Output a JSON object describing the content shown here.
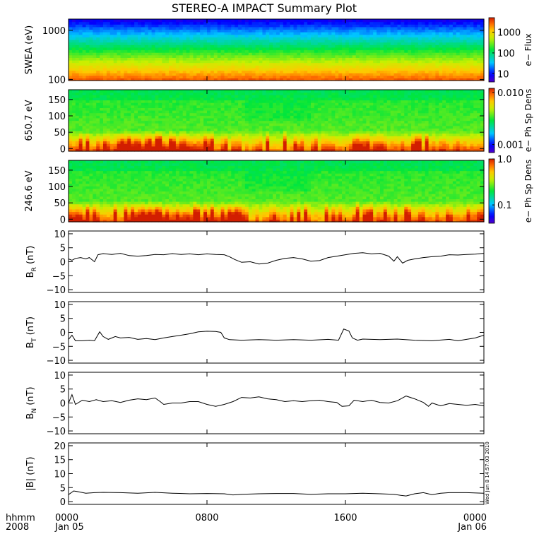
{
  "chart_data": {
    "type": "line",
    "title": "STEREO-A IMPACT Summary Plot",
    "time_axis": {
      "start": "2008-01-05T00:00",
      "end": "2008-01-06T00:00",
      "corner_labels": [
        "hhmm",
        "2008"
      ],
      "ticks": [
        {
          "hour": 0,
          "label": "0000",
          "sublabel": "Jan 05"
        },
        {
          "hour": 8,
          "label": "0800",
          "sublabel": ""
        },
        {
          "hour": 16,
          "label": "1600",
          "sublabel": ""
        },
        {
          "hour": 24,
          "label": "0000",
          "sublabel": "Jan 06"
        }
      ]
    },
    "spectrograms": [
      {
        "ylabel": "SWEA (eV)",
        "yscale": "log",
        "ylim": [
          95,
          1700
        ],
        "yticks": [
          100,
          1000
        ],
        "ytick_labels": [
          "100",
          "1000"
        ],
        "colorbar": {
          "label": "e− Flux",
          "scale": "log",
          "range": [
            4,
            5000
          ],
          "ticks": [
            10,
            100,
            1000
          ],
          "tick_labels": [
            "10",
            "100",
            "1000"
          ]
        }
      },
      {
        "ylabel": "650.7 eV",
        "yscale": "linear",
        "ylim": [
          -8,
          180
        ],
        "yticks": [
          0,
          50,
          100,
          150
        ],
        "ytick_labels": [
          "0",
          "50",
          "100",
          "150"
        ],
        "colorbar": {
          "label": "e− Ph Sp Dens",
          "scale": "log",
          "range": [
            0.0007,
            0.012
          ],
          "ticks": [
            0.001,
            0.01
          ],
          "tick_labels": [
            "0.001",
            "0.010"
          ]
        }
      },
      {
        "ylabel": "246.6 eV",
        "yscale": "linear",
        "ylim": [
          -8,
          180
        ],
        "yticks": [
          0,
          50,
          100,
          150
        ],
        "ytick_labels": [
          "0",
          "50",
          "100",
          "150"
        ],
        "colorbar": {
          "label": "e− Ph Sp Dens",
          "scale": "log",
          "range": [
            0.04,
            1.0
          ],
          "ticks": [
            0.1,
            1.0
          ],
          "tick_labels": [
            "0.1",
            "1.0"
          ]
        }
      }
    ],
    "line_panels": [
      {
        "ylabel_main": "B",
        "ylabel_sub": "R",
        "ylabel_unit": " (nT)",
        "ylim": [
          -11,
          11
        ],
        "yticks": [
          -10,
          -5,
          0,
          5,
          10
        ],
        "ytick_labels": [
          "−10",
          "−5",
          "0",
          "5",
          "10"
        ],
        "series": [
          {
            "hour": 0.0,
            "value": 1.0
          },
          {
            "hour": 0.2,
            "value": 0.5
          },
          {
            "hour": 0.4,
            "value": 1.2
          },
          {
            "hour": 0.7,
            "value": 1.5
          },
          {
            "hour": 1.0,
            "value": 1.0
          },
          {
            "hour": 1.2,
            "value": 1.5
          },
          {
            "hour": 1.5,
            "value": 0.0
          },
          {
            "hour": 1.7,
            "value": 2.5
          },
          {
            "hour": 2.0,
            "value": 2.9
          },
          {
            "hour": 2.5,
            "value": 2.6
          },
          {
            "hour": 3.0,
            "value": 3.0
          },
          {
            "hour": 3.5,
            "value": 2.2
          },
          {
            "hour": 4.0,
            "value": 2.0
          },
          {
            "hour": 4.5,
            "value": 2.2
          },
          {
            "hour": 5.0,
            "value": 2.6
          },
          {
            "hour": 5.5,
            "value": 2.5
          },
          {
            "hour": 6.0,
            "value": 2.9
          },
          {
            "hour": 6.5,
            "value": 2.6
          },
          {
            "hour": 7.0,
            "value": 2.8
          },
          {
            "hour": 7.5,
            "value": 2.5
          },
          {
            "hour": 8.0,
            "value": 2.8
          },
          {
            "hour": 8.5,
            "value": 2.6
          },
          {
            "hour": 9.0,
            "value": 2.5
          },
          {
            "hour": 9.3,
            "value": 1.8
          },
          {
            "hour": 9.6,
            "value": 0.8
          },
          {
            "hour": 10.0,
            "value": -0.2
          },
          {
            "hour": 10.5,
            "value": 0.0
          },
          {
            "hour": 11.0,
            "value": -0.8
          },
          {
            "hour": 11.5,
            "value": -0.5
          },
          {
            "hour": 12.0,
            "value": 0.5
          },
          {
            "hour": 12.5,
            "value": 1.2
          },
          {
            "hour": 13.0,
            "value": 1.5
          },
          {
            "hour": 13.5,
            "value": 1.0
          },
          {
            "hour": 14.0,
            "value": 0.2
          },
          {
            "hour": 14.5,
            "value": 0.4
          },
          {
            "hour": 15.0,
            "value": 1.5
          },
          {
            "hour": 15.5,
            "value": 2.0
          },
          {
            "hour": 16.0,
            "value": 2.5
          },
          {
            "hour": 16.5,
            "value": 3.0
          },
          {
            "hour": 17.0,
            "value": 3.2
          },
          {
            "hour": 17.5,
            "value": 2.8
          },
          {
            "hour": 18.0,
            "value": 3.0
          },
          {
            "hour": 18.5,
            "value": 2.0
          },
          {
            "hour": 18.8,
            "value": 0.2
          },
          {
            "hour": 19.0,
            "value": 1.8
          },
          {
            "hour": 19.3,
            "value": -0.5
          },
          {
            "hour": 19.6,
            "value": 0.5
          },
          {
            "hour": 20.0,
            "value": 1.0
          },
          {
            "hour": 20.5,
            "value": 1.5
          },
          {
            "hour": 21.0,
            "value": 1.8
          },
          {
            "hour": 21.5,
            "value": 2.0
          },
          {
            "hour": 22.0,
            "value": 2.5
          },
          {
            "hour": 22.5,
            "value": 2.4
          },
          {
            "hour": 23.0,
            "value": 2.6
          },
          {
            "hour": 23.5,
            "value": 2.7
          },
          {
            "hour": 24.0,
            "value": 3.0
          }
        ]
      },
      {
        "ylabel_main": "B",
        "ylabel_sub": "T",
        "ylabel_unit": " (nT)",
        "ylim": [
          -11,
          11
        ],
        "yticks": [
          -10,
          -5,
          0,
          5,
          10
        ],
        "ytick_labels": [
          "−10",
          "−5",
          "0",
          "5",
          "10"
        ],
        "series": [
          {
            "hour": 0.0,
            "value": -2.5
          },
          {
            "hour": 0.2,
            "value": -1.0
          },
          {
            "hour": 0.4,
            "value": -3.0
          },
          {
            "hour": 0.8,
            "value": -3.0
          },
          {
            "hour": 1.2,
            "value": -2.8
          },
          {
            "hour": 1.5,
            "value": -3.0
          },
          {
            "hour": 1.8,
            "value": 0.2
          },
          {
            "hour": 2.0,
            "value": -1.5
          },
          {
            "hour": 2.3,
            "value": -2.5
          },
          {
            "hour": 2.7,
            "value": -1.5
          },
          {
            "hour": 3.0,
            "value": -2.0
          },
          {
            "hour": 3.5,
            "value": -1.8
          },
          {
            "hour": 4.0,
            "value": -2.5
          },
          {
            "hour": 4.5,
            "value": -2.2
          },
          {
            "hour": 5.0,
            "value": -2.6
          },
          {
            "hour": 5.5,
            "value": -2.0
          },
          {
            "hour": 6.0,
            "value": -1.5
          },
          {
            "hour": 6.5,
            "value": -1.0
          },
          {
            "hour": 7.0,
            "value": -0.5
          },
          {
            "hour": 7.5,
            "value": 0.2
          },
          {
            "hour": 8.0,
            "value": 0.4
          },
          {
            "hour": 8.5,
            "value": 0.3
          },
          {
            "hour": 8.8,
            "value": 0.0
          },
          {
            "hour": 9.0,
            "value": -2.0
          },
          {
            "hour": 9.3,
            "value": -2.6
          },
          {
            "hour": 10.0,
            "value": -2.8
          },
          {
            "hour": 11.0,
            "value": -2.6
          },
          {
            "hour": 12.0,
            "value": -2.8
          },
          {
            "hour": 13.0,
            "value": -2.6
          },
          {
            "hour": 14.0,
            "value": -2.8
          },
          {
            "hour": 15.0,
            "value": -2.5
          },
          {
            "hour": 15.6,
            "value": -2.8
          },
          {
            "hour": 15.9,
            "value": 1.2
          },
          {
            "hour": 16.2,
            "value": 0.5
          },
          {
            "hour": 16.4,
            "value": -2.0
          },
          {
            "hour": 16.7,
            "value": -2.8
          },
          {
            "hour": 17.0,
            "value": -2.4
          },
          {
            "hour": 18.0,
            "value": -2.6
          },
          {
            "hour": 19.0,
            "value": -2.4
          },
          {
            "hour": 20.0,
            "value": -2.8
          },
          {
            "hour": 21.0,
            "value": -3.0
          },
          {
            "hour": 22.0,
            "value": -2.5
          },
          {
            "hour": 22.5,
            "value": -3.0
          },
          {
            "hour": 23.0,
            "value": -2.5
          },
          {
            "hour": 23.5,
            "value": -2.0
          },
          {
            "hour": 24.0,
            "value": -1.0
          }
        ]
      },
      {
        "ylabel_main": "B",
        "ylabel_sub": "N",
        "ylabel_unit": " (nT)",
        "ylim": [
          -11,
          11
        ],
        "yticks": [
          -10,
          -5,
          0,
          5,
          10
        ],
        "ytick_labels": [
          "−10",
          "−5",
          "0",
          "5",
          "10"
        ],
        "series": [
          {
            "hour": 0.0,
            "value": 0.0
          },
          {
            "hour": 0.2,
            "value": 3.0
          },
          {
            "hour": 0.4,
            "value": -0.5
          },
          {
            "hour": 0.8,
            "value": 1.0
          },
          {
            "hour": 1.2,
            "value": 0.5
          },
          {
            "hour": 1.6,
            "value": 1.2
          },
          {
            "hour": 2.0,
            "value": 0.5
          },
          {
            "hour": 2.5,
            "value": 0.8
          },
          {
            "hour": 3.0,
            "value": 0.2
          },
          {
            "hour": 3.5,
            "value": 1.0
          },
          {
            "hour": 4.0,
            "value": 1.5
          },
          {
            "hour": 4.5,
            "value": 1.2
          },
          {
            "hour": 5.0,
            "value": 1.8
          },
          {
            "hour": 5.3,
            "value": 0.5
          },
          {
            "hour": 5.5,
            "value": -0.5
          },
          {
            "hour": 6.0,
            "value": 0.0
          },
          {
            "hour": 6.5,
            "value": 0.0
          },
          {
            "hour": 7.0,
            "value": 0.5
          },
          {
            "hour": 7.5,
            "value": 0.5
          },
          {
            "hour": 8.0,
            "value": -0.5
          },
          {
            "hour": 8.5,
            "value": -1.2
          },
          {
            "hour": 9.0,
            "value": -0.5
          },
          {
            "hour": 9.5,
            "value": 0.5
          },
          {
            "hour": 10.0,
            "value": 2.0
          },
          {
            "hour": 10.5,
            "value": 1.8
          },
          {
            "hour": 11.0,
            "value": 2.2
          },
          {
            "hour": 11.5,
            "value": 1.5
          },
          {
            "hour": 12.0,
            "value": 1.2
          },
          {
            "hour": 12.5,
            "value": 0.5
          },
          {
            "hour": 13.0,
            "value": 0.8
          },
          {
            "hour": 13.5,
            "value": 0.5
          },
          {
            "hour": 14.0,
            "value": 0.8
          },
          {
            "hour": 14.5,
            "value": 1.0
          },
          {
            "hour": 15.0,
            "value": 0.5
          },
          {
            "hour": 15.5,
            "value": 0.2
          },
          {
            "hour": 15.8,
            "value": -1.2
          },
          {
            "hour": 16.2,
            "value": -1.0
          },
          {
            "hour": 16.5,
            "value": 1.0
          },
          {
            "hour": 17.0,
            "value": 0.5
          },
          {
            "hour": 17.5,
            "value": 1.0
          },
          {
            "hour": 18.0,
            "value": 0.2
          },
          {
            "hour": 18.5,
            "value": 0.0
          },
          {
            "hour": 19.0,
            "value": 0.8
          },
          {
            "hour": 19.5,
            "value": 2.5
          },
          {
            "hour": 20.0,
            "value": 1.5
          },
          {
            "hour": 20.5,
            "value": 0.2
          },
          {
            "hour": 20.8,
            "value": -1.2
          },
          {
            "hour": 21.0,
            "value": 0.0
          },
          {
            "hour": 21.5,
            "value": -1.0
          },
          {
            "hour": 22.0,
            "value": -0.2
          },
          {
            "hour": 22.5,
            "value": -0.5
          },
          {
            "hour": 23.0,
            "value": -0.8
          },
          {
            "hour": 23.5,
            "value": -0.5
          },
          {
            "hour": 24.0,
            "value": -1.0
          }
        ]
      },
      {
        "ylabel_main": "|B|",
        "ylabel_sub": "",
        "ylabel_unit": " (nT)",
        "ylim": [
          -1,
          21
        ],
        "yticks": [
          0,
          5,
          10,
          15,
          20
        ],
        "ytick_labels": [
          "0",
          "5",
          "10",
          "15",
          "20"
        ],
        "series": [
          {
            "hour": 0.0,
            "value": 2.5
          },
          {
            "hour": 0.3,
            "value": 3.8
          },
          {
            "hour": 0.6,
            "value": 3.5
          },
          {
            "hour": 1.0,
            "value": 3.0
          },
          {
            "hour": 1.5,
            "value": 3.2
          },
          {
            "hour": 2.0,
            "value": 3.3
          },
          {
            "hour": 3.0,
            "value": 3.2
          },
          {
            "hour": 4.0,
            "value": 3.0
          },
          {
            "hour": 5.0,
            "value": 3.3
          },
          {
            "hour": 6.0,
            "value": 3.0
          },
          {
            "hour": 7.0,
            "value": 2.8
          },
          {
            "hour": 8.0,
            "value": 2.9
          },
          {
            "hour": 9.0,
            "value": 2.8
          },
          {
            "hour": 9.5,
            "value": 2.4
          },
          {
            "hour": 10.0,
            "value": 2.6
          },
          {
            "hour": 11.0,
            "value": 2.8
          },
          {
            "hour": 12.0,
            "value": 2.9
          },
          {
            "hour": 13.0,
            "value": 2.9
          },
          {
            "hour": 14.0,
            "value": 2.6
          },
          {
            "hour": 15.0,
            "value": 2.8
          },
          {
            "hour": 16.0,
            "value": 2.8
          },
          {
            "hour": 17.0,
            "value": 3.0
          },
          {
            "hour": 18.0,
            "value": 2.8
          },
          {
            "hour": 18.8,
            "value": 2.6
          },
          {
            "hour": 19.2,
            "value": 2.2
          },
          {
            "hour": 19.5,
            "value": 2.0
          },
          {
            "hour": 20.0,
            "value": 2.8
          },
          {
            "hour": 20.5,
            "value": 3.2
          },
          {
            "hour": 21.0,
            "value": 2.5
          },
          {
            "hour": 21.5,
            "value": 3.0
          },
          {
            "hour": 22.0,
            "value": 3.2
          },
          {
            "hour": 23.0,
            "value": 3.2
          },
          {
            "hour": 24.0,
            "value": 3.0
          }
        ]
      }
    ],
    "timestamp": "Wed Jun 8 14:57:03 2010"
  }
}
